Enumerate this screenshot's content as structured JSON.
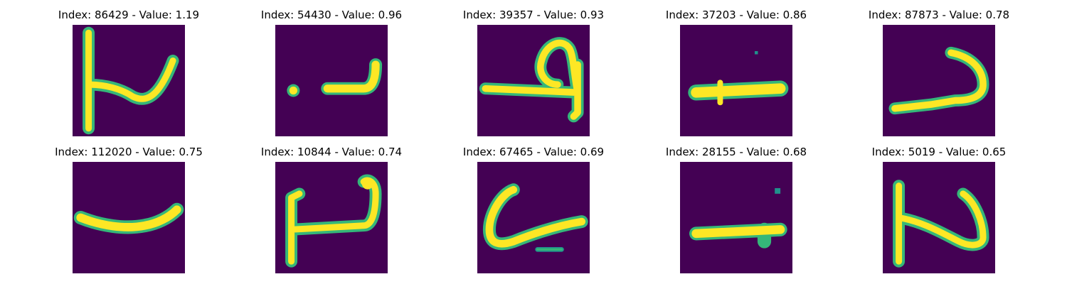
{
  "colors": {
    "background": "#440154",
    "stroke": "#fde725",
    "edge": "#35b779",
    "mid": "#21918c"
  },
  "panels": [
    {
      "title": "Index: 86429 - Value: 1.19",
      "glyph": "glyph-86429"
    },
    {
      "title": "Index: 54430 - Value: 0.96",
      "glyph": "glyph-54430"
    },
    {
      "title": "Index: 39357 - Value: 0.93",
      "glyph": "glyph-39357"
    },
    {
      "title": "Index: 37203 - Value: 0.86",
      "glyph": "glyph-37203"
    },
    {
      "title": "Index: 87873 - Value: 0.78",
      "glyph": "glyph-87873"
    },
    {
      "title": "Index: 112020 - Value: 0.75",
      "glyph": "glyph-112020"
    },
    {
      "title": "Index: 10844 - Value: 0.74",
      "glyph": "glyph-10844"
    },
    {
      "title": "Index: 67465 - Value: 0.69",
      "glyph": "glyph-67465"
    },
    {
      "title": "Index: 28155 - Value: 0.68",
      "glyph": "glyph-28155"
    },
    {
      "title": "Index: 5019 - Value: 0.65",
      "glyph": "glyph-5019"
    }
  ]
}
